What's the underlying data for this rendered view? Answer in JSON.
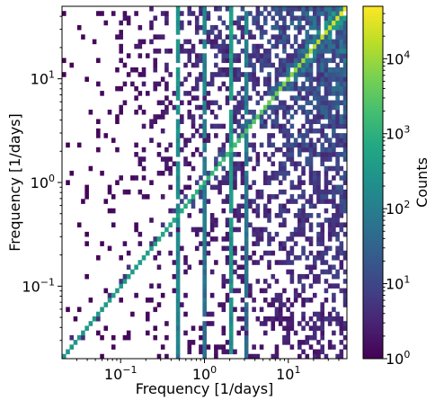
{
  "chart_data": {
    "type": "heatmap",
    "title": "",
    "xlabel": "Frequency [1/days]",
    "ylabel": "Frequency [1/days]",
    "xscale": "log",
    "yscale": "log",
    "xlim": [
      0.02,
      50
    ],
    "ylim": [
      0.02,
      50
    ],
    "x_ticks": [
      {
        "value": 0.1,
        "base": "10",
        "exp": "−1"
      },
      {
        "value": 1,
        "base": "10",
        "exp": "0"
      },
      {
        "value": 10,
        "base": "10",
        "exp": "1"
      }
    ],
    "y_ticks": [
      {
        "value": 0.1,
        "base": "10",
        "exp": "−1"
      },
      {
        "value": 1,
        "base": "10",
        "exp": "0"
      },
      {
        "value": 10,
        "base": "10",
        "exp": "1"
      }
    ],
    "grid": false,
    "colormap": "viridis",
    "colorbar": {
      "label": "Counts",
      "scale": "log",
      "range": [
        1,
        50000
      ],
      "ticks": [
        {
          "value": 1,
          "base": "10",
          "exp": "0"
        },
        {
          "value": 10,
          "base": "10",
          "exp": "1"
        },
        {
          "value": 100,
          "base": "10",
          "exp": "2"
        },
        {
          "value": 1000,
          "base": "10",
          "exp": "3"
        },
        {
          "value": 10000,
          "base": "10",
          "exp": "4"
        }
      ]
    },
    "features": {
      "diagonal_counts": [
        300,
        40000
      ],
      "vertical_bands": [
        {
          "x": 0.5,
          "count": 300
        },
        {
          "x": 1.0,
          "count": 150
        },
        {
          "x": 2.0,
          "count": 600
        },
        {
          "x": 3.0,
          "count": 120
        }
      ]
    }
  }
}
